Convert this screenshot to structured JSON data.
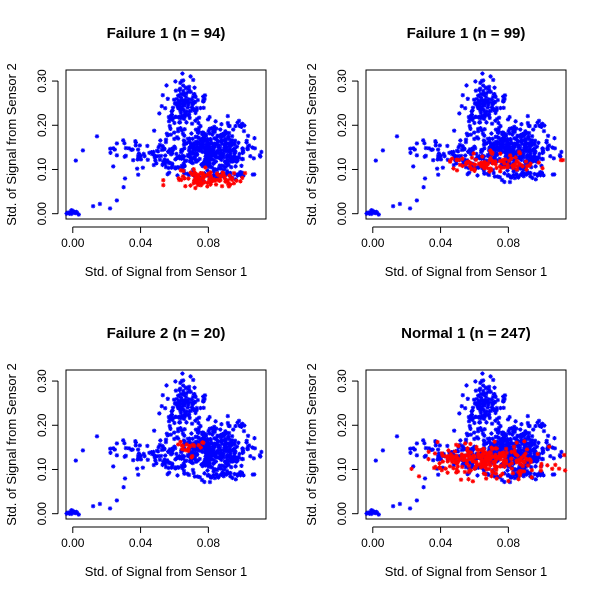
{
  "chart_data": [
    {
      "type": "scatter",
      "title": "Failure 1 (n = 94)",
      "xlabel": "Std. of Signal from Sensor 1",
      "ylabel": "Std. of Signal from Sensor 2",
      "xticks": [
        "0.00",
        "0.04",
        "0.08"
      ],
      "yticks": [
        "0.00",
        "0.10",
        "0.20",
        "0.30"
      ],
      "xlim": [
        -0.004,
        0.114
      ],
      "ylim": [
        -0.012,
        0.325
      ],
      "marker": "star",
      "highlight_cluster": {
        "color": "#ff0000",
        "count": 94,
        "center": [
          0.08,
          0.08
        ],
        "spread": [
          0.01,
          0.01
        ]
      },
      "background_color": "#0000ff"
    },
    {
      "type": "scatter",
      "title": "Failure 1 (n = 99)",
      "xlabel": "Std. of Signal from Sensor 1",
      "ylabel": "Std. of Signal from Sensor 2",
      "xticks": [
        "0.00",
        "0.04",
        "0.08"
      ],
      "yticks": [
        "0.00",
        "0.10",
        "0.20",
        "0.30"
      ],
      "xlim": [
        -0.004,
        0.114
      ],
      "ylim": [
        -0.012,
        0.325
      ],
      "marker": "star",
      "highlight_cluster": {
        "color": "#ff0000",
        "count": 99,
        "center": [
          0.072,
          0.115
        ],
        "spread": [
          0.014,
          0.01
        ]
      },
      "background_color": "#0000ff"
    },
    {
      "type": "scatter",
      "title": "Failure 2 (n = 20)",
      "xlabel": "Std. of Signal from Sensor 1",
      "ylabel": "Std. of Signal from Sensor 2",
      "xticks": [
        "0.00",
        "0.04",
        "0.08"
      ],
      "yticks": [
        "0.00",
        "0.10",
        "0.20",
        "0.30"
      ],
      "xlim": [
        -0.004,
        0.114
      ],
      "ylim": [
        -0.012,
        0.325
      ],
      "marker": "star",
      "highlight_cluster": {
        "color": "#ff0000",
        "count": 20,
        "center": [
          0.067,
          0.145
        ],
        "spread": [
          0.006,
          0.01
        ]
      },
      "background_color": "#0000ff"
    },
    {
      "type": "scatter",
      "title": "Normal 1 (n = 247)",
      "xlabel": "Std. of Signal from Sensor 1",
      "ylabel": "Std. of Signal from Sensor 2",
      "xticks": [
        "0.00",
        "0.04",
        "0.08"
      ],
      "yticks": [
        "0.00",
        "0.10",
        "0.20",
        "0.30"
      ],
      "xlim": [
        -0.004,
        0.114
      ],
      "ylim": [
        -0.012,
        0.325
      ],
      "marker": "star",
      "highlight_cluster": {
        "color": "#ff0000",
        "count": 247,
        "center": [
          0.068,
          0.12
        ],
        "spread": [
          0.016,
          0.018
        ]
      },
      "background_color": "#0000ff"
    }
  ],
  "background_points": {
    "color": "#0000ff",
    "clusters": [
      {
        "count": 150,
        "center": [
          0.065,
          0.24
        ],
        "spread": [
          0.006,
          0.032
        ]
      },
      {
        "count": 380,
        "center": [
          0.082,
          0.145
        ],
        "spread": [
          0.011,
          0.025
        ]
      },
      {
        "count": 120,
        "center": [
          0.05,
          0.13
        ],
        "spread": [
          0.016,
          0.022
        ]
      },
      {
        "count": 40,
        "center": [
          0.086,
          0.087
        ],
        "spread": [
          0.009,
          0.007
        ]
      },
      {
        "count": 18,
        "center": [
          0.0,
          0.003
        ],
        "spread": [
          0.0015,
          0.003
        ]
      },
      {
        "count": 10,
        "center": [
          0.1,
          0.2
        ],
        "spread": [
          0.006,
          0.008
        ]
      }
    ],
    "extras": [
      [
        0.012,
        0.017
      ],
      [
        0.016,
        0.022
      ],
      [
        0.022,
        0.012
      ],
      [
        0.026,
        0.03
      ],
      [
        0.03,
        0.06
      ]
    ]
  }
}
